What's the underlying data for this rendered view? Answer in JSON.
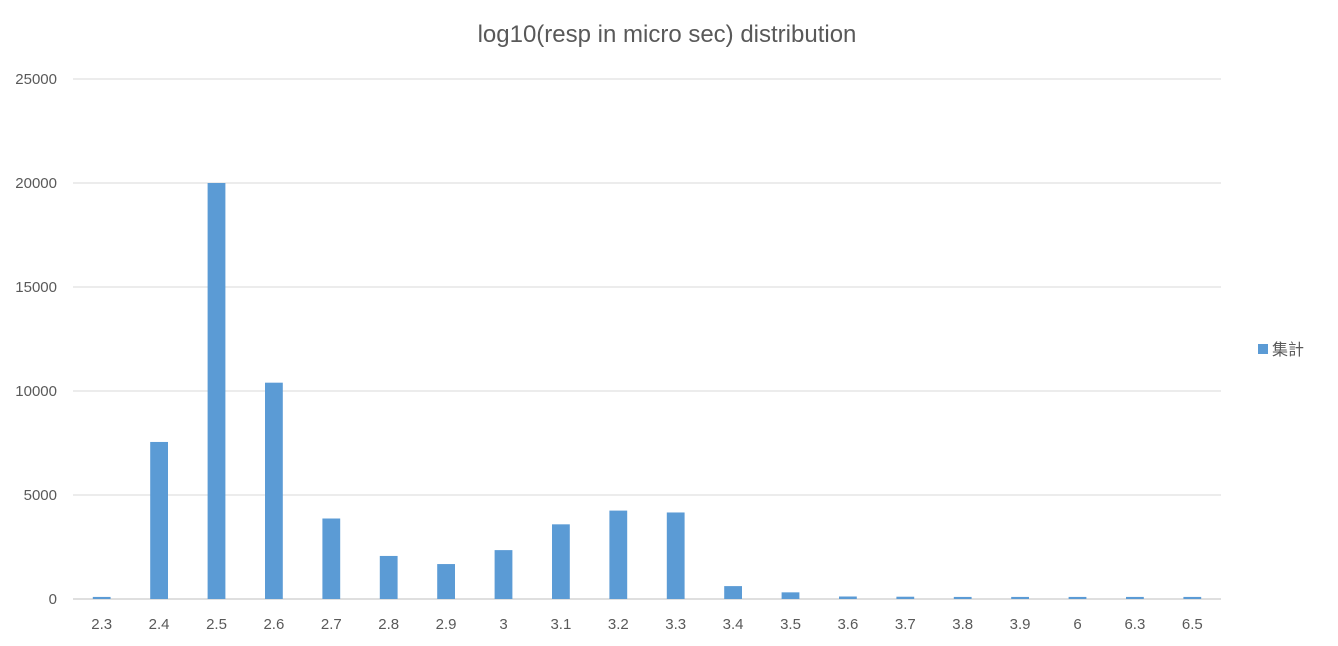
{
  "chart_data": {
    "type": "bar",
    "title": "log10(resp in micro sec) distribution",
    "xlabel": "",
    "ylabel": "",
    "categories": [
      "2.3",
      "2.4",
      "2.5",
      "2.6",
      "2.7",
      "2.8",
      "2.9",
      "3",
      "3.1",
      "3.2",
      "3.3",
      "3.4",
      "3.5",
      "3.6",
      "3.7",
      "3.8",
      "3.9",
      "6",
      "6.3",
      "6.5"
    ],
    "series": [
      {
        "name": "集計",
        "values": [
          100,
          7550,
          20000,
          10400,
          3870,
          2070,
          1680,
          2350,
          3590,
          4250,
          4160,
          620,
          320,
          120,
          110,
          100,
          100,
          100,
          100,
          100
        ],
        "color": "#5b9bd5"
      }
    ],
    "ylim": [
      0,
      25000
    ],
    "yticks": [
      0,
      5000,
      10000,
      15000,
      20000,
      25000
    ],
    "grid": true,
    "legend": "right"
  }
}
